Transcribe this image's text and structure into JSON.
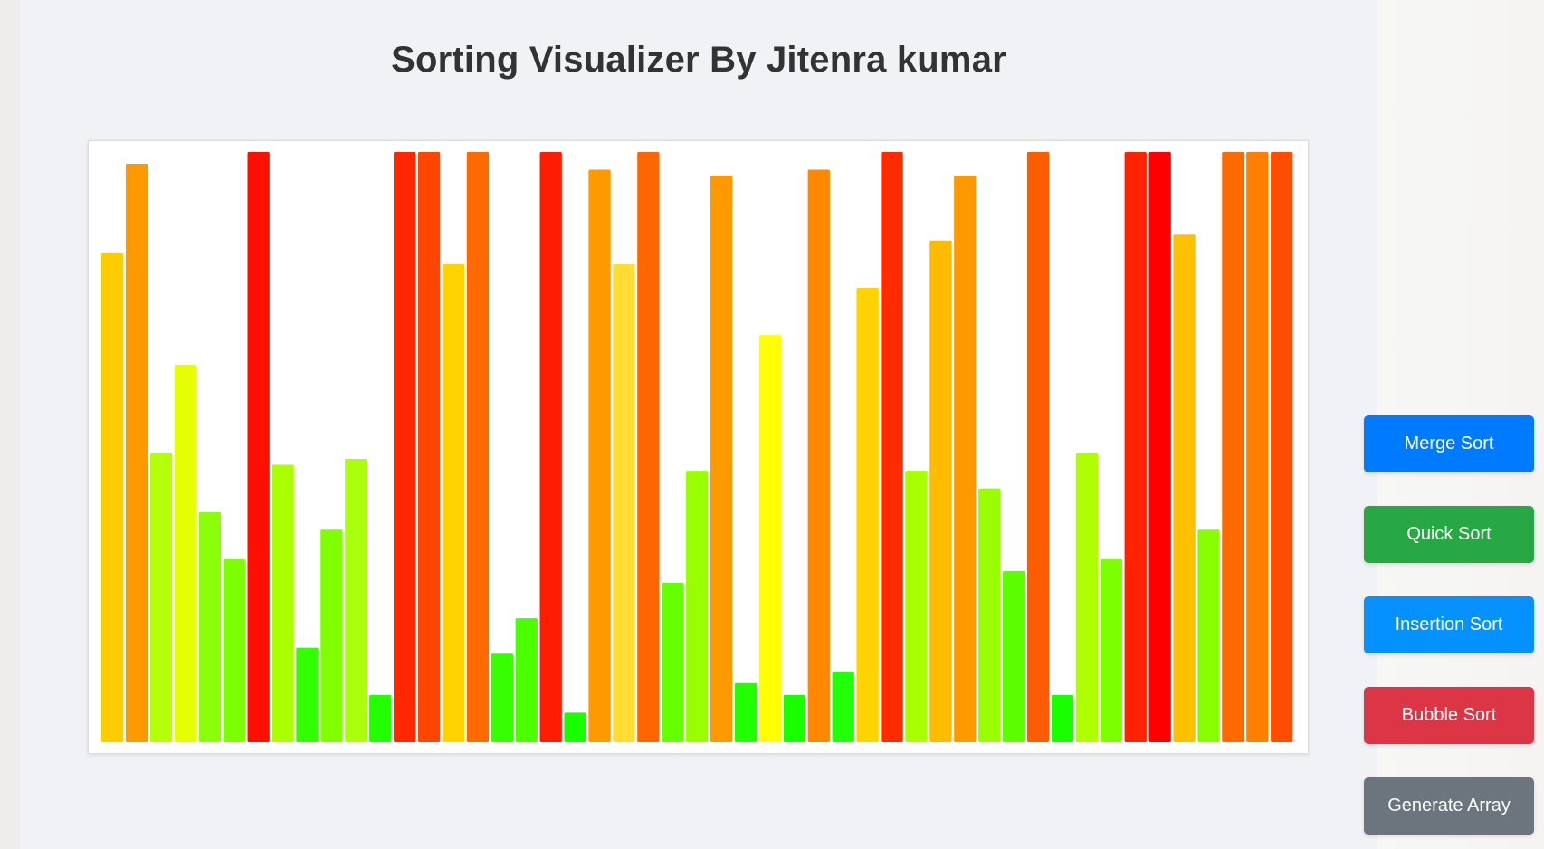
{
  "page": {
    "title": "Sorting Visualizer By Jitenra kumar"
  },
  "buttons": {
    "merge": {
      "label": "Merge Sort",
      "color": "#007bff"
    },
    "quick": {
      "label": "Quick Sort",
      "color": "#28a745"
    },
    "insertion": {
      "label": "Insertion Sort",
      "color": "#0591ff"
    },
    "bubble": {
      "label": "Bubble Sort",
      "color": "#dc3545"
    },
    "generate": {
      "label": "Generate Array",
      "color": "#6c757d"
    }
  },
  "chart_data": {
    "type": "bar",
    "title": "",
    "xlabel": "",
    "ylabel": "",
    "ylim": [
      0,
      100
    ],
    "grid": false,
    "legend": "none",
    "values": [
      83,
      98,
      49,
      64,
      39,
      31,
      100,
      47,
      16,
      36,
      48,
      8,
      100,
      100,
      81,
      100,
      15,
      21,
      100,
      5,
      97,
      81,
      100,
      27,
      46,
      96,
      10,
      69,
      8,
      97,
      12,
      77,
      100,
      46,
      85,
      96,
      43,
      29,
      100,
      8,
      49,
      31,
      100,
      100,
      86,
      36,
      100,
      100,
      100
    ],
    "colors": [
      "#ffcc00",
      "#ff9900",
      "#b5ff0a",
      "#e6ff00",
      "#8bff0a",
      "#7cff00",
      "#ff0f00",
      "#aaff00",
      "#32ff00",
      "#7fff00",
      "#aaff0a",
      "#22ff00",
      "#ff2600",
      "#ff4500",
      "#ffd200",
      "#ff6a00",
      "#37ff00",
      "#4cff00",
      "#ff1c00",
      "#1aff00",
      "#ff9900",
      "#ffdd33",
      "#ff6600",
      "#66ff00",
      "#99ff00",
      "#ff9900",
      "#22ff00",
      "#ffff00",
      "#1aff00",
      "#ff8800",
      "#22ff0a",
      "#ffd200",
      "#ff2b00",
      "#a8ff00",
      "#ffbb00",
      "#ff9900",
      "#99ff00",
      "#5cff00",
      "#ff5c00",
      "#1aff00",
      "#b0ff00",
      "#7cff00",
      "#ff2200",
      "#ff0000",
      "#ffc000",
      "#88ff00",
      "#ff6a00",
      "#ff8000",
      "#ff4d00"
    ]
  }
}
